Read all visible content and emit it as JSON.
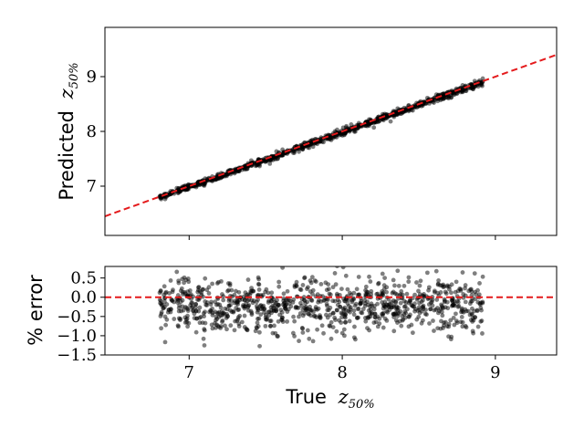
{
  "chart_data": [
    {
      "type": "scatter",
      "panel": "top",
      "ylabel": "Predicted",
      "ylabel_var": "z",
      "ylabel_sub": "50%",
      "xlim": [
        6.45,
        9.4
      ],
      "ylim": [
        6.1,
        9.9
      ],
      "xticks": [
        7,
        8,
        9
      ],
      "yticks": [
        7,
        8,
        9
      ],
      "ytick_labels": [
        "7",
        "8",
        "9"
      ],
      "series": [
        {
          "kind": "scatter",
          "color": "#000000",
          "alpha": 0.5,
          "n_points": 1000,
          "x_range": [
            6.8,
            8.92
          ],
          "relation": "y = x",
          "noise_pct": 0.35
        },
        {
          "kind": "reference-line",
          "style": "dashed",
          "color": "#e41a1c",
          "relation": "y = x"
        }
      ],
      "grid": false
    },
    {
      "type": "scatter",
      "panel": "bottom",
      "xlabel": "True",
      "xlabel_var": "z",
      "xlabel_sub": "50%",
      "ylabel": "% error",
      "xlim": [
        6.45,
        9.4
      ],
      "ylim": [
        -1.5,
        0.8
      ],
      "xticks": [
        7,
        8,
        9
      ],
      "xtick_labels": [
        "7",
        "8",
        "9"
      ],
      "yticks": [
        0.5,
        0.0,
        -0.5,
        -1.0,
        -1.5
      ],
      "ytick_labels": [
        "0.5",
        "0.0",
        "−0.5",
        "−1.0",
        "−1.5"
      ],
      "series": [
        {
          "kind": "scatter",
          "color": "#000000",
          "alpha": 0.5,
          "n_points": 1000,
          "x_range": [
            6.8,
            8.92
          ],
          "mean_pct": -0.2,
          "spread_pct": 0.35
        },
        {
          "kind": "reference-line",
          "style": "dashed",
          "color": "#e41a1c",
          "y": 0.0
        }
      ],
      "grid": false
    }
  ]
}
